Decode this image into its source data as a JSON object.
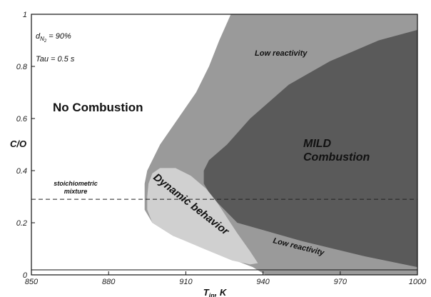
{
  "chart_data": {
    "type": "area",
    "title": "",
    "xlabel": "T",
    "xlabel_sub": "in",
    "xlabel_suffix": ", K",
    "ylabel": "C/O",
    "xlim": [
      850,
      1000
    ],
    "ylim": [
      0,
      1
    ],
    "x_ticks": [
      850,
      880,
      910,
      940,
      970,
      1000
    ],
    "x_tick_labels": [
      "850",
      "880",
      "910",
      "940",
      "970",
      "1000"
    ],
    "y_ticks": [
      0,
      0.2,
      0.4,
      0.6,
      0.8,
      1
    ],
    "y_tick_labels": [
      "0",
      "0.2",
      "0.4",
      "0.6",
      "0.8",
      "1"
    ],
    "grid": false,
    "legend": "none",
    "parameters": {
      "dilution_symbol": "d",
      "dilution_subscript": "N",
      "dilution_subsub": "2",
      "dilution_value": " = 90%",
      "tau_text": "Tau = 0.5 s"
    },
    "stoichiometric": {
      "y": 0.29,
      "label_line1": "stoichiometric",
      "label_line2": "mixture"
    },
    "regions": [
      {
        "label": "Low reactivity",
        "color": "#9a9a9a",
        "boundary": [
          [
            927.5,
            1.0
          ],
          [
            1000,
            1.0
          ],
          [
            1000,
            0.0
          ],
          [
            941,
            0.0
          ],
          [
            936,
            0.03
          ],
          [
            928,
            0.06
          ],
          [
            918,
            0.1
          ],
          [
            905,
            0.15
          ],
          [
            897,
            0.2
          ],
          [
            894,
            0.25
          ],
          [
            894,
            0.3
          ],
          [
            894,
            0.35
          ],
          [
            895,
            0.4
          ],
          [
            900,
            0.5
          ],
          [
            907,
            0.6
          ],
          [
            914,
            0.7
          ],
          [
            919,
            0.8
          ],
          [
            923,
            0.9
          ]
        ]
      },
      {
        "label": "MILD Combustion",
        "label_line1": "MILD",
        "label_line2": "Combustion",
        "color": "#5a5a5a",
        "boundary": [
          [
            1000,
            0.94
          ],
          [
            985,
            0.9
          ],
          [
            966,
            0.82
          ],
          [
            950,
            0.73
          ],
          [
            935,
            0.6
          ],
          [
            926,
            0.5
          ],
          [
            919,
            0.44
          ],
          [
            917,
            0.4
          ],
          [
            917,
            0.35
          ],
          [
            920,
            0.3
          ],
          [
            930,
            0.2
          ],
          [
            955,
            0.13
          ],
          [
            980,
            0.07
          ],
          [
            1000,
            0.03
          ]
        ]
      },
      {
        "label": "Dynamic behavior",
        "color": "#d0d0d0",
        "boundary": [
          [
            900,
            0.41
          ],
          [
            906,
            0.41
          ],
          [
            912,
            0.38
          ],
          [
            918,
            0.33
          ],
          [
            922,
            0.28
          ],
          [
            926,
            0.22
          ],
          [
            930,
            0.16
          ],
          [
            935,
            0.09
          ],
          [
            938,
            0.045
          ],
          [
            935,
            0.04
          ],
          [
            928,
            0.055
          ],
          [
            917,
            0.1
          ],
          [
            905,
            0.15
          ],
          [
            897,
            0.2
          ],
          [
            895,
            0.25
          ],
          [
            895,
            0.3
          ],
          [
            895.5,
            0.35
          ],
          [
            897,
            0.39
          ]
        ]
      }
    ],
    "annotations": [
      {
        "text": "No Combustion"
      },
      {
        "text": "Low reactivity"
      },
      {
        "text": "Low reactivity"
      },
      {
        "text": "MILD"
      },
      {
        "text": "Combustion"
      },
      {
        "text": "Dynamic behavior"
      }
    ]
  }
}
